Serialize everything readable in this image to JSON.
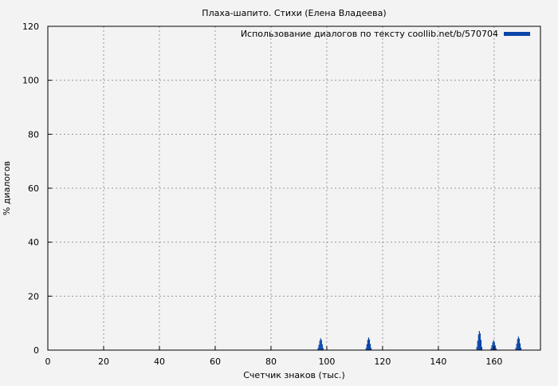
{
  "chart_data": {
    "type": "bar",
    "title": "Плаха-шапито. Стихи (Елена Владеева)",
    "xlabel": "Счетчик знаков (тыс.)",
    "ylabel": "% диалогов",
    "xlim": [
      0,
      176.6
    ],
    "ylim": [
      0,
      120
    ],
    "xticks": [
      0,
      20,
      40,
      60,
      80,
      100,
      120,
      140,
      160
    ],
    "yticks": [
      0,
      20,
      40,
      60,
      80,
      100,
      120
    ],
    "grid": true,
    "legend_position": "top-right",
    "series": [
      {
        "name": "Использование диалогов по тексту coollib.net/b/570704",
        "color": "#0a45a8",
        "x": [
          96.9,
          97.2,
          97.5,
          97.8,
          98.1,
          98.4,
          98.7,
          114.1,
          114.4,
          114.7,
          115.0,
          115.3,
          115.6,
          115.9,
          153.8,
          154.1,
          154.4,
          154.7,
          155.0,
          155.3,
          155.6,
          158.9,
          159.2,
          159.5,
          159.8,
          160.1,
          160.4,
          160.7,
          167.8,
          168.1,
          168.4,
          168.7,
          169.0,
          169.3,
          169.6
        ],
        "y": [
          0.8,
          2.0,
          3.5,
          4.4,
          3.8,
          2.2,
          0.8,
          0.8,
          2.2,
          3.8,
          4.7,
          4.0,
          2.3,
          0.8,
          1.2,
          3.5,
          5.8,
          7.1,
          6.2,
          3.8,
          1.2,
          0.7,
          1.8,
          2.9,
          3.7,
          3.0,
          1.8,
          0.7,
          0.9,
          2.4,
          4.1,
          5.0,
          4.3,
          2.5,
          0.9
        ]
      }
    ]
  }
}
